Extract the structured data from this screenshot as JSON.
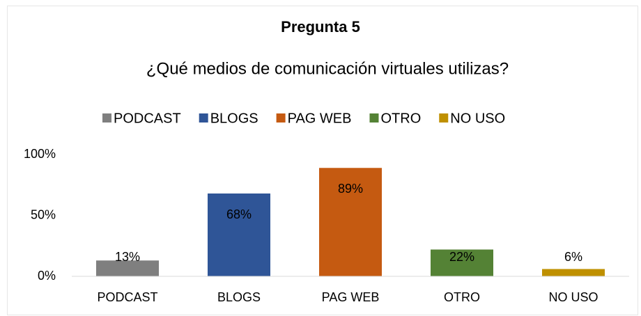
{
  "chart_data": {
    "type": "bar",
    "title": "Pregunta 5",
    "subtitle": "¿Qué medios de comunicación virtuales utilizas?",
    "categories": [
      "PODCAST",
      "BLOGS",
      "PAG WEB",
      "OTRO",
      "NO USO"
    ],
    "values": [
      13,
      68,
      89,
      22,
      6
    ],
    "value_labels": [
      "13%",
      "68%",
      "89%",
      "22%",
      "6%"
    ],
    "colors": [
      "#7f7f7f",
      "#2f5597",
      "#c55a11",
      "#548235",
      "#bf9000"
    ],
    "ylim": [
      0,
      100
    ],
    "yticks": [
      {
        "value": 0,
        "label": "0%"
      },
      {
        "value": 50,
        "label": "50%"
      },
      {
        "value": 100,
        "label": "100%"
      }
    ],
    "grid": false,
    "legend": "top"
  }
}
